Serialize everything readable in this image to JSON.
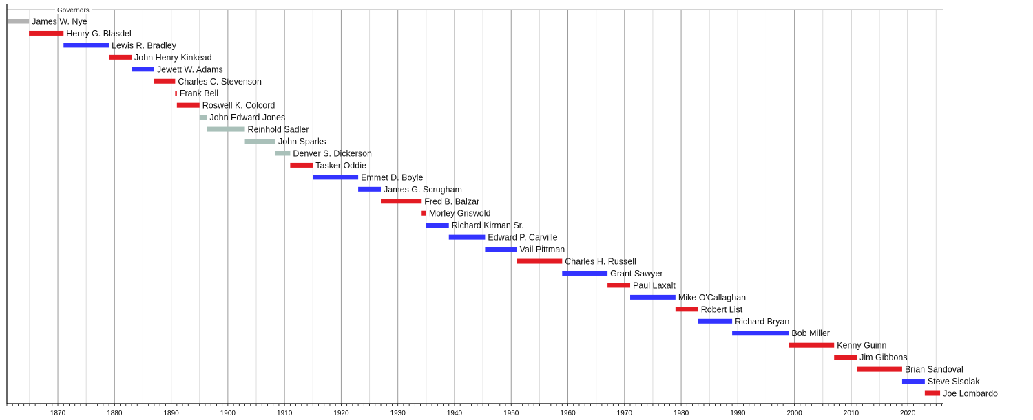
{
  "chart_data": {
    "type": "timeline",
    "title": "Governors",
    "xlim": [
      1861,
      2026.3
    ],
    "x_ticks": [
      1870,
      1880,
      1890,
      1900,
      1910,
      1920,
      1930,
      1940,
      1950,
      1960,
      1970,
      1980,
      1990,
      2000,
      2010,
      2020
    ],
    "grid": true,
    "party_colors": {
      "none": "#b3b3b3",
      "republican": "#e31b23",
      "democratic": "#3333ff",
      "silver": "#a9c0b9"
    },
    "series": [
      {
        "name": "James W. Nye",
        "start": 1861.2,
        "end": 1864.9,
        "party": "none"
      },
      {
        "name": "Henry G. Blasdel",
        "start": 1864.9,
        "end": 1871,
        "party": "republican"
      },
      {
        "name": "Lewis R. Bradley",
        "start": 1871,
        "end": 1879,
        "party": "democratic"
      },
      {
        "name": "John Henry Kinkead",
        "start": 1879,
        "end": 1883,
        "party": "republican"
      },
      {
        "name": "Jewett W. Adams",
        "start": 1883,
        "end": 1887,
        "party": "democratic"
      },
      {
        "name": "Charles C. Stevenson",
        "start": 1887,
        "end": 1890.7,
        "party": "republican"
      },
      {
        "name": "Frank Bell",
        "start": 1890.7,
        "end": 1891,
        "party": "republican"
      },
      {
        "name": "Roswell K. Colcord",
        "start": 1891,
        "end": 1895,
        "party": "republican"
      },
      {
        "name": "John Edward Jones",
        "start": 1895,
        "end": 1896.3,
        "party": "silver"
      },
      {
        "name": "Reinhold Sadler",
        "start": 1896.3,
        "end": 1903,
        "party": "silver"
      },
      {
        "name": "John Sparks",
        "start": 1903,
        "end": 1908.4,
        "party": "silver"
      },
      {
        "name": "Denver S. Dickerson",
        "start": 1908.4,
        "end": 1911,
        "party": "silver"
      },
      {
        "name": "Tasker Oddie",
        "start": 1911,
        "end": 1915,
        "party": "republican"
      },
      {
        "name": "Emmet D. Boyle",
        "start": 1915,
        "end": 1923,
        "party": "democratic"
      },
      {
        "name": "James G. Scrugham",
        "start": 1923,
        "end": 1927,
        "party": "democratic"
      },
      {
        "name": "Fred B. Balzar",
        "start": 1927,
        "end": 1934.2,
        "party": "republican"
      },
      {
        "name": "Morley Griswold",
        "start": 1934.2,
        "end": 1935,
        "party": "republican"
      },
      {
        "name": "Richard Kirman Sr.",
        "start": 1935,
        "end": 1939,
        "party": "democratic"
      },
      {
        "name": "Edward P. Carville",
        "start": 1939,
        "end": 1945.4,
        "party": "democratic"
      },
      {
        "name": "Vail Pittman",
        "start": 1945.4,
        "end": 1951,
        "party": "democratic"
      },
      {
        "name": "Charles H. Russell",
        "start": 1951,
        "end": 1959,
        "party": "republican"
      },
      {
        "name": "Grant Sawyer",
        "start": 1959,
        "end": 1967,
        "party": "democratic"
      },
      {
        "name": "Paul Laxalt",
        "start": 1967,
        "end": 1971,
        "party": "republican"
      },
      {
        "name": "Mike O'Callaghan",
        "start": 1971,
        "end": 1979,
        "party": "democratic"
      },
      {
        "name": "Robert List",
        "start": 1979,
        "end": 1983,
        "party": "republican"
      },
      {
        "name": "Richard Bryan",
        "start": 1983,
        "end": 1989,
        "party": "democratic"
      },
      {
        "name": "Bob Miller",
        "start": 1989,
        "end": 1999,
        "party": "democratic"
      },
      {
        "name": "Kenny Guinn",
        "start": 1999,
        "end": 2007,
        "party": "republican"
      },
      {
        "name": "Jim Gibbons",
        "start": 2007,
        "end": 2011,
        "party": "republican"
      },
      {
        "name": "Brian Sandoval",
        "start": 2011,
        "end": 2019,
        "party": "republican"
      },
      {
        "name": "Steve Sisolak",
        "start": 2019,
        "end": 2023,
        "party": "democratic"
      },
      {
        "name": "Joe Lombardo",
        "start": 2023,
        "end": 2025.7,
        "party": "republican"
      }
    ]
  }
}
